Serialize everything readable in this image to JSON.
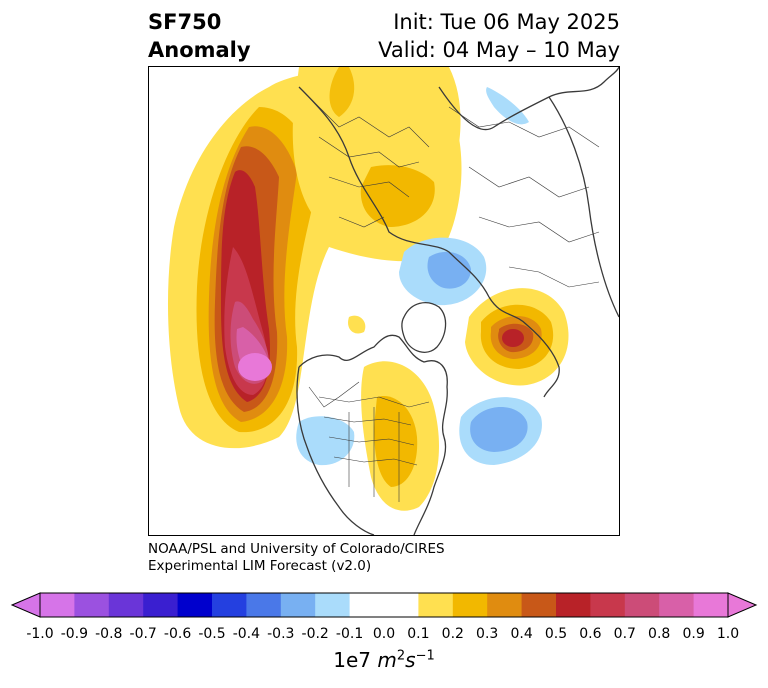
{
  "header": {
    "variable": "SF750",
    "subtitle": "Anomaly",
    "init": "Init: Tue 06 May 2025",
    "valid": "Valid: 04 May – 10 May"
  },
  "credit": {
    "line1": "NOAA/PSL and University of Colorado/CIRES",
    "line2": "Experimental LIM Forecast (v2.0)"
  },
  "colorbar": {
    "tick_labels": [
      "-1.0",
      "-0.9",
      "-0.8",
      "-0.7",
      "-0.6",
      "-0.5",
      "-0.4",
      "-0.3",
      "-0.2",
      "-0.1",
      "0.0",
      "0.1",
      "0.2",
      "0.3",
      "0.4",
      "0.5",
      "0.6",
      "0.7",
      "0.8",
      "0.9",
      "1.0"
    ],
    "colors": [
      "#d674e8",
      "#9b51e0",
      "#6a35d8",
      "#3a1fd0",
      "#0000cd",
      "#2440e0",
      "#4a78e8",
      "#78b0f2",
      "#aadcfb",
      "#ffffff",
      "#ffffff",
      "#ffe050",
      "#f2b800",
      "#e08c10",
      "#c85818",
      "#b82228",
      "#c8384c",
      "#cc4c78",
      "#d860a8",
      "#e878d8"
    ],
    "extend": "both",
    "units_base": "1e7",
    "units_m": "m",
    "units_m_exp": "2",
    "units_s": "s",
    "units_s_exp": "−1"
  },
  "map": {
    "projection": "north-polar-stereographic",
    "features": [
      "coastlines",
      "country-borders",
      "us-state-borders"
    ]
  }
}
